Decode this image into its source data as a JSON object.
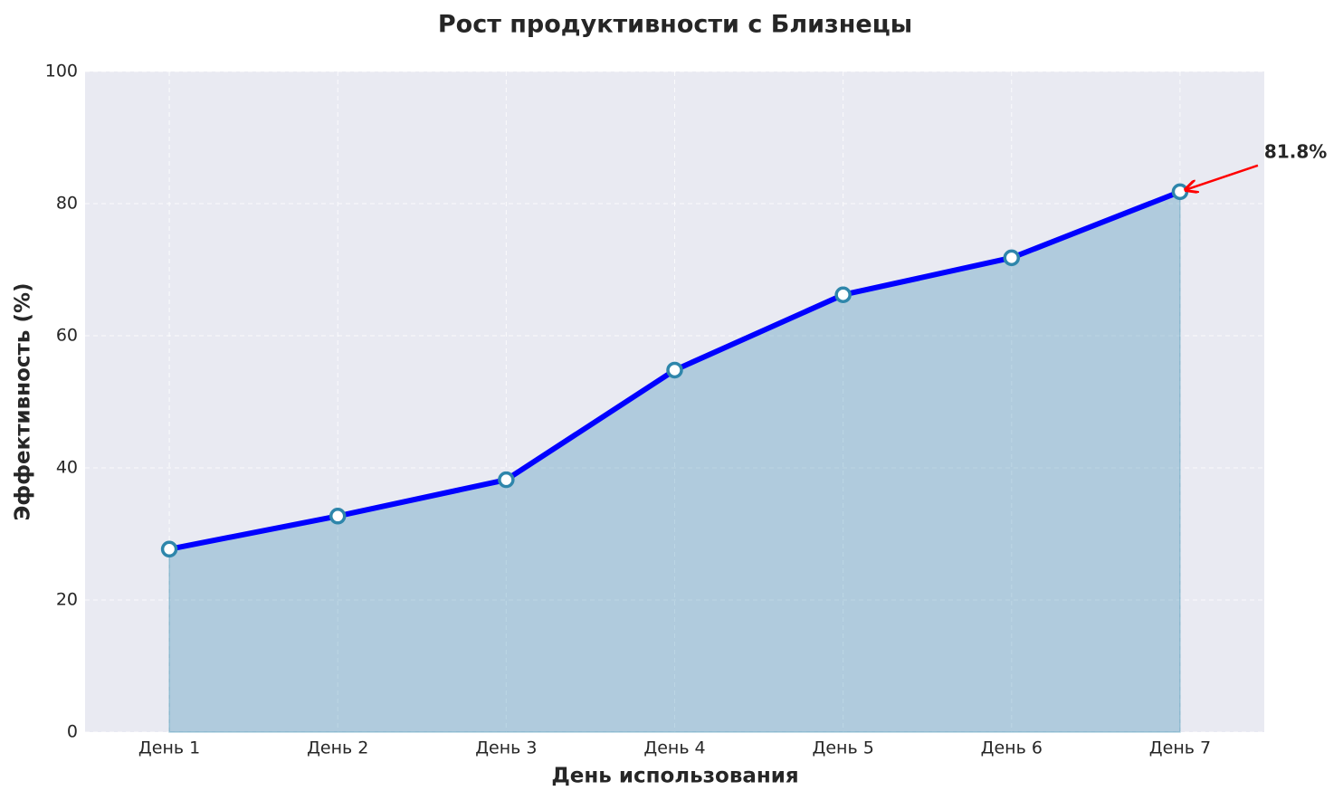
{
  "chart_data": {
    "type": "line",
    "title": "Рост продуктивности с Близнецы",
    "x_label": "День использования",
    "y_label": "Эффективность (%)",
    "categories": [
      "День 1",
      "День 2",
      "День 3",
      "День 4",
      "День 5",
      "День 6",
      "День 7"
    ],
    "values": [
      27.7,
      32.7,
      38.2,
      54.8,
      66.2,
      71.8,
      81.8
    ],
    "value_labels": [
      null,
      null,
      null,
      null,
      null,
      null,
      "81.8%"
    ],
    "color": "#0000ff",
    "marker_color": "#2e86ab",
    "fill_color": "#2e86ab",
    "annotation_color": "#ff0000",
    "ylim": [
      0,
      100
    ],
    "yticks": [
      0,
      20,
      40,
      60,
      80,
      100
    ],
    "grid": true
  }
}
